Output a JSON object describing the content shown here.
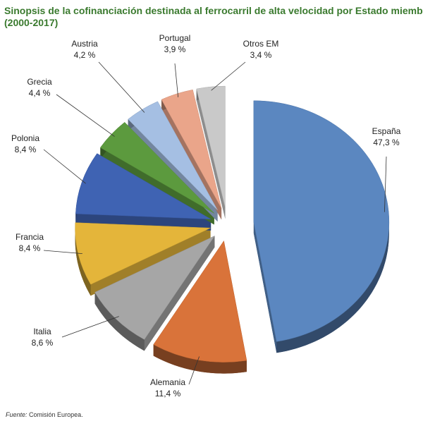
{
  "chart_data": {
    "type": "pie",
    "title": [
      "Sinopsis de la cofinanciación destinada al ferrocarril de alta velocidad por Estado miembro",
      "(2000-2017)"
    ],
    "categories": [
      "España",
      "Alemania",
      "Italia",
      "Francia",
      "Polonia",
      "Grecia",
      "Austria",
      "Portugal",
      "Otros EM"
    ],
    "values": [
      47.3,
      11.4,
      8.6,
      8.4,
      8.4,
      4.4,
      4.2,
      3.9,
      3.4
    ],
    "value_labels": [
      "47,3 %",
      "11,4 %",
      "8,6 %",
      "8,4 %",
      "8,4 %",
      "4,4 %",
      "4,2 %",
      "3,9 %",
      "3,4 %"
    ],
    "colors": [
      "#5b87c0",
      "#d9733a",
      "#a6a6a6",
      "#e4b53a",
      "#3f63b3",
      "#5c9a3e",
      "#a5bfe3",
      "#eaa58a",
      "#c9c9c9"
    ],
    "source": {
      "label": "Fuente:",
      "text": "Comisión Europea."
    }
  }
}
